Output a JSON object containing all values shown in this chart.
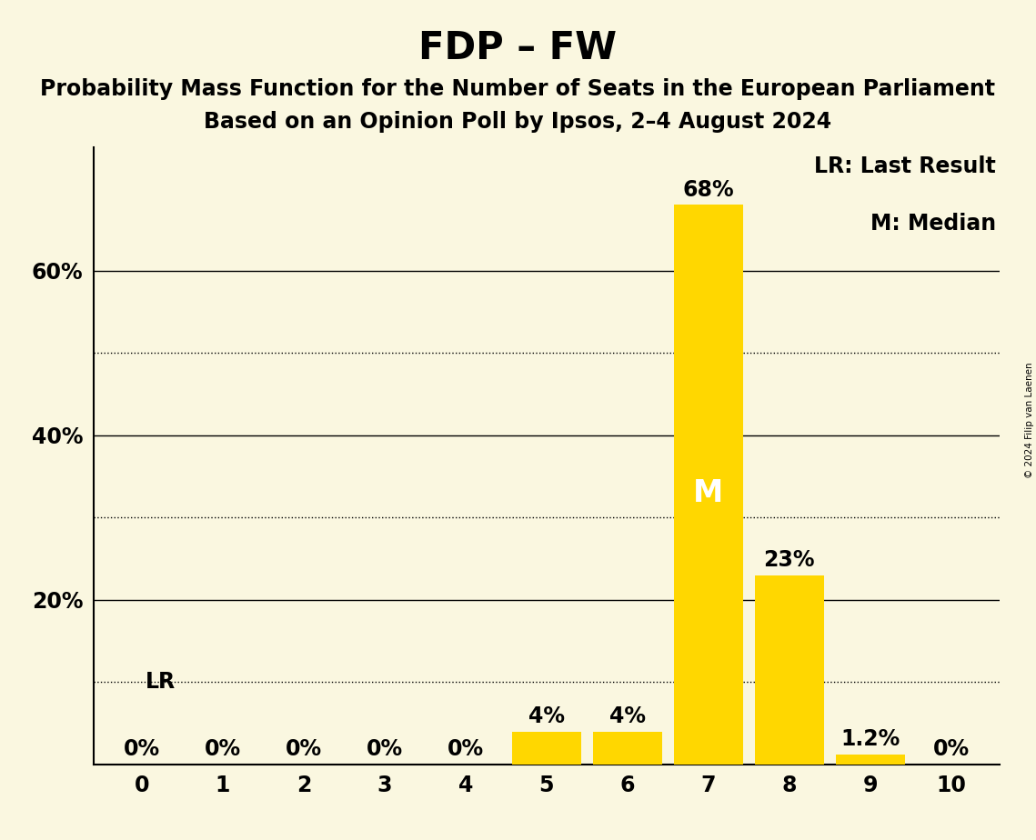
{
  "title": "FDP – FW",
  "subtitle1": "Probability Mass Function for the Number of Seats in the European Parliament",
  "subtitle2": "Based on an Opinion Poll by Ipsos, 2–4 August 2024",
  "copyright": "© 2024 Filip van Laenen",
  "categories": [
    0,
    1,
    2,
    3,
    4,
    5,
    6,
    7,
    8,
    9,
    10
  ],
  "values": [
    0,
    0,
    0,
    0,
    0,
    4,
    4,
    68,
    23,
    1.2,
    0
  ],
  "bar_color": "#FFD700",
  "background_color": "#FAF7E0",
  "median_seat": 7,
  "median_label": "M",
  "lr_value": 10,
  "lr_label": "LR",
  "legend_lr": "LR: Last Result",
  "legend_m": "M: Median",
  "ylim": [
    0,
    75
  ],
  "yticks_solid": [
    20,
    40,
    60
  ],
  "yticks_dotted": [
    10,
    30,
    50
  ],
  "title_fontsize": 30,
  "subtitle_fontsize": 17,
  "label_fontsize": 17,
  "tick_fontsize": 17,
  "bar_label_fontsize": 17,
  "legend_fontsize": 17,
  "bar_label_strings": [
    "0%",
    "0%",
    "0%",
    "0%",
    "0%",
    "4%",
    "4%",
    "68%",
    "23%",
    "1.2%",
    "0%"
  ]
}
